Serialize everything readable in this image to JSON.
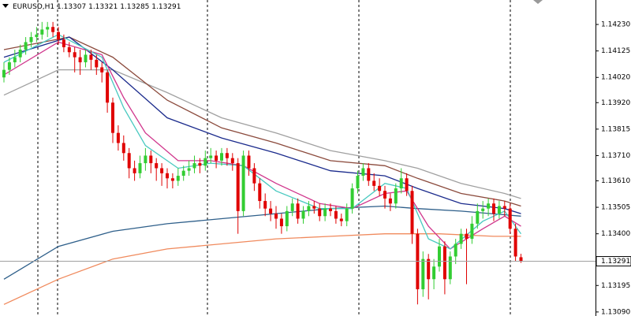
{
  "chart_data": {
    "type": "candlestick",
    "title": "EURUSD,H1",
    "up_color": "#32cd32",
    "down_color": "#e00000",
    "ylim": [
      1.13074,
      1.14327
    ],
    "yticks": [
      {
        "value": 1.1423,
        "label": "1.14230"
      },
      {
        "value": 1.14125,
        "label": "1.14125"
      },
      {
        "value": 1.1402,
        "label": "1.14020"
      },
      {
        "value": 1.1392,
        "label": "1.13920"
      },
      {
        "value": 1.13815,
        "label": "1.13815"
      },
      {
        "value": 1.1371,
        "label": "1.13710"
      },
      {
        "value": 1.1361,
        "label": "1.13610"
      },
      {
        "value": 1.13505,
        "label": "1.13505"
      },
      {
        "value": 1.134,
        "label": "1.13400"
      },
      {
        "value": 1.13195,
        "label": "1.13195"
      },
      {
        "value": 1.1309,
        "label": "1.13090"
      }
    ],
    "ohlc": [
      [
        1.1402,
        1.1408,
        1.14,
        1.1405
      ],
      [
        1.1405,
        1.141,
        1.1403,
        1.1408
      ],
      [
        1.1408,
        1.1413,
        1.1406,
        1.141
      ],
      [
        1.141,
        1.1415,
        1.1408,
        1.1413
      ],
      [
        1.1413,
        1.1418,
        1.1411,
        1.1416
      ],
      [
        1.1416,
        1.142,
        1.1414,
        1.1418
      ],
      [
        1.1418,
        1.1422,
        1.1416,
        1.1419
      ],
      [
        1.1419,
        1.1424,
        1.1417,
        1.1421
      ],
      [
        1.1421,
        1.1424,
        1.1418,
        1.1422
      ],
      [
        1.1422,
        1.1424,
        1.1418,
        1.142
      ],
      [
        1.142,
        1.1422,
        1.1415,
        1.1417
      ],
      [
        1.1417,
        1.1419,
        1.1412,
        1.1414
      ],
      [
        1.1414,
        1.1416,
        1.141,
        1.1412
      ],
      [
        1.1412,
        1.1414,
        1.1404,
        1.141
      ],
      [
        1.141,
        1.1413,
        1.1403,
        1.1408
      ],
      [
        1.1408,
        1.1413,
        1.1406,
        1.1411
      ],
      [
        1.1411,
        1.1413,
        1.1405,
        1.1409
      ],
      [
        1.1409,
        1.1411,
        1.1403,
        1.1406
      ],
      [
        1.1406,
        1.1408,
        1.14,
        1.1404
      ],
      [
        1.1404,
        1.1405,
        1.1388,
        1.1392
      ],
      [
        1.1392,
        1.1394,
        1.1376,
        1.138
      ],
      [
        1.138,
        1.1383,
        1.1373,
        1.1376
      ],
      [
        1.1376,
        1.1379,
        1.1369,
        1.1372
      ],
      [
        1.1372,
        1.1374,
        1.1362,
        1.1366
      ],
      [
        1.1366,
        1.1369,
        1.1361,
        1.1364
      ],
      [
        1.1364,
        1.1371,
        1.1362,
        1.1368
      ],
      [
        1.1368,
        1.1374,
        1.1365,
        1.1371
      ],
      [
        1.1371,
        1.1373,
        1.1364,
        1.1368
      ],
      [
        1.1368,
        1.137,
        1.1361,
        1.1366
      ],
      [
        1.1366,
        1.1368,
        1.1359,
        1.1364
      ],
      [
        1.1364,
        1.1366,
        1.1358,
        1.1362
      ],
      [
        1.1362,
        1.1364,
        1.1358,
        1.1361
      ],
      [
        1.1361,
        1.1366,
        1.1359,
        1.1363
      ],
      [
        1.1363,
        1.1367,
        1.1361,
        1.1365
      ],
      [
        1.1365,
        1.1369,
        1.1363,
        1.1366
      ],
      [
        1.1366,
        1.1371,
        1.1364,
        1.1368
      ],
      [
        1.1368,
        1.137,
        1.1364,
        1.1367
      ],
      [
        1.1367,
        1.1373,
        1.1365,
        1.137
      ],
      [
        1.137,
        1.1374,
        1.1368,
        1.1371
      ],
      [
        1.1371,
        1.1373,
        1.1366,
        1.1369
      ],
      [
        1.1369,
        1.1374,
        1.1367,
        1.1372
      ],
      [
        1.1372,
        1.1374,
        1.1367,
        1.137
      ],
      [
        1.137,
        1.1372,
        1.1365,
        1.1368
      ],
      [
        1.1368,
        1.137,
        1.134,
        1.1349
      ],
      [
        1.1349,
        1.1373,
        1.1347,
        1.1371
      ],
      [
        1.1371,
        1.1373,
        1.1363,
        1.1366
      ],
      [
        1.1366,
        1.1368,
        1.1357,
        1.136
      ],
      [
        1.136,
        1.1362,
        1.135,
        1.1353
      ],
      [
        1.1353,
        1.1356,
        1.1347,
        1.135
      ],
      [
        1.135,
        1.1353,
        1.1345,
        1.1348
      ],
      [
        1.1348,
        1.1351,
        1.1342,
        1.1346
      ],
      [
        1.1346,
        1.1348,
        1.134,
        1.1343
      ],
      [
        1.1343,
        1.1351,
        1.1341,
        1.1349
      ],
      [
        1.1349,
        1.1354,
        1.1347,
        1.1352
      ],
      [
        1.1352,
        1.1354,
        1.1344,
        1.1346
      ],
      [
        1.1346,
        1.1351,
        1.1344,
        1.1349
      ],
      [
        1.1349,
        1.1353,
        1.1347,
        1.1351
      ],
      [
        1.1351,
        1.1353,
        1.1348,
        1.135
      ],
      [
        1.135,
        1.1352,
        1.1345,
        1.1347
      ],
      [
        1.1347,
        1.1352,
        1.1345,
        1.135
      ],
      [
        1.135,
        1.1352,
        1.1347,
        1.1349
      ],
      [
        1.1349,
        1.1351,
        1.1344,
        1.1346
      ],
      [
        1.1346,
        1.1348,
        1.1343,
        1.1345
      ],
      [
        1.1345,
        1.1352,
        1.1343,
        1.135
      ],
      [
        1.135,
        1.136,
        1.1348,
        1.1358
      ],
      [
        1.1358,
        1.1365,
        1.1356,
        1.1363
      ],
      [
        1.1363,
        1.1368,
        1.1361,
        1.1366
      ],
      [
        1.1366,
        1.1368,
        1.1359,
        1.1361
      ],
      [
        1.1361,
        1.1364,
        1.1357,
        1.1359
      ],
      [
        1.1359,
        1.1362,
        1.1355,
        1.1357
      ],
      [
        1.1357,
        1.1359,
        1.135,
        1.1354
      ],
      [
        1.1354,
        1.1356,
        1.1349,
        1.1352
      ],
      [
        1.1352,
        1.136,
        1.135,
        1.1358
      ],
      [
        1.1358,
        1.1366,
        1.1356,
        1.1362
      ],
      [
        1.1362,
        1.1364,
        1.1355,
        1.1357
      ],
      [
        1.1357,
        1.1359,
        1.1336,
        1.134
      ],
      [
        1.134,
        1.1342,
        1.1312,
        1.1318
      ],
      [
        1.1318,
        1.1333,
        1.1315,
        1.133
      ],
      [
        1.133,
        1.1332,
        1.1314,
        1.1322
      ],
      [
        1.1322,
        1.133,
        1.1318,
        1.1327
      ],
      [
        1.1327,
        1.1338,
        1.1325,
        1.1335
      ],
      [
        1.1335,
        1.1337,
        1.1316,
        1.1322
      ],
      [
        1.1322,
        1.1333,
        1.132,
        1.1331
      ],
      [
        1.1331,
        1.1338,
        1.1328,
        1.1336
      ],
      [
        1.1336,
        1.1342,
        1.1334,
        1.134
      ],
      [
        1.134,
        1.1342,
        1.132,
        1.1338
      ],
      [
        1.1338,
        1.1347,
        1.1336,
        1.1344
      ],
      [
        1.1344,
        1.1352,
        1.1342,
        1.1349
      ],
      [
        1.1349,
        1.1353,
        1.1346,
        1.135
      ],
      [
        1.135,
        1.1354,
        1.1347,
        1.1352
      ],
      [
        1.1352,
        1.1354,
        1.1345,
        1.1348
      ],
      [
        1.1348,
        1.1353,
        1.1346,
        1.1351
      ],
      [
        1.1351,
        1.1353,
        1.1347,
        1.135
      ],
      [
        1.135,
        1.1352,
        1.134,
        1.1342
      ],
      [
        1.1342,
        1.1344,
        1.1329,
        1.1331
      ],
      [
        1.13307,
        1.13321,
        1.13285,
        1.13291
      ]
    ],
    "series": [
      {
        "color": "#2e5f8a",
        "x": [
          0,
          10,
          20,
          30,
          40,
          50,
          60,
          70,
          76,
          84,
          95
        ],
        "values": [
          1.1322,
          1.1335,
          1.1341,
          1.1344,
          1.1346,
          1.1348,
          1.135,
          1.1351,
          1.135,
          1.1349,
          1.1347
        ]
      },
      {
        "color": "#f08a5d",
        "x": [
          0,
          10,
          20,
          30,
          40,
          50,
          60,
          70,
          80,
          90,
          95
        ],
        "values": [
          1.1312,
          1.1322,
          1.133,
          1.1334,
          1.1336,
          1.1338,
          1.1339,
          1.134,
          1.134,
          1.1339,
          1.1339
        ]
      },
      {
        "color": "#a0a0a0",
        "x": [
          0,
          10,
          20,
          30,
          40,
          50,
          60,
          70,
          76,
          84,
          92,
          95
        ],
        "values": [
          1.1395,
          1.1405,
          1.1405,
          1.1396,
          1.1386,
          1.138,
          1.1373,
          1.1369,
          1.1366,
          1.136,
          1.1356,
          1.1354
        ]
      },
      {
        "color": "#8b4a3c",
        "x": [
          0,
          12,
          20,
          30,
          40,
          50,
          60,
          70,
          76,
          84,
          92,
          95
        ],
        "values": [
          1.1413,
          1.1418,
          1.141,
          1.1393,
          1.1382,
          1.1376,
          1.1369,
          1.1367,
          1.1362,
          1.1356,
          1.1353,
          1.1351
        ]
      },
      {
        "color": "#1a2a8c",
        "x": [
          0,
          12,
          20,
          30,
          40,
          50,
          60,
          70,
          76,
          84,
          92,
          95
        ],
        "values": [
          1.141,
          1.1418,
          1.1405,
          1.1386,
          1.1378,
          1.1372,
          1.1365,
          1.1363,
          1.1358,
          1.1352,
          1.135,
          1.1348
        ]
      },
      {
        "color": "#d0358c",
        "x": [
          0,
          10,
          18,
          22,
          26,
          32,
          38,
          44,
          50,
          58,
          64,
          70,
          74,
          78,
          82,
          88,
          92,
          95
        ],
        "values": [
          1.1403,
          1.1416,
          1.1411,
          1.1394,
          1.138,
          1.1369,
          1.1369,
          1.1367,
          1.136,
          1.1352,
          1.135,
          1.1356,
          1.1357,
          1.1343,
          1.1334,
          1.1342,
          1.1347,
          1.1343
        ]
      },
      {
        "color": "#48c9c0",
        "x": [
          0,
          10,
          18,
          22,
          26,
          32,
          38,
          44,
          50,
          58,
          64,
          70,
          74,
          78,
          82,
          88,
          92,
          95
        ],
        "values": [
          1.1408,
          1.1419,
          1.141,
          1.139,
          1.1375,
          1.1366,
          1.1368,
          1.1367,
          1.1357,
          1.135,
          1.135,
          1.136,
          1.1358,
          1.1338,
          1.1334,
          1.1345,
          1.1349,
          1.134
        ]
      }
    ]
  }
}
